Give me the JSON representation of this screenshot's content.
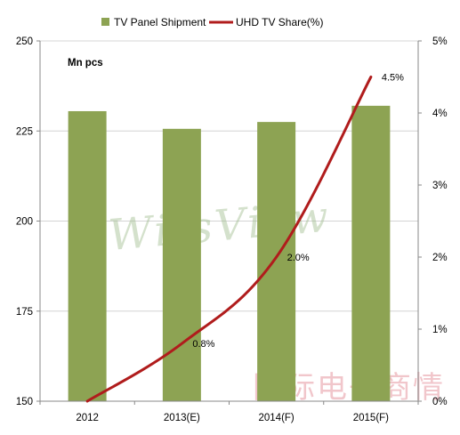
{
  "chart_data": {
    "type": "bar",
    "categories": [
      "2012",
      "2013(E)",
      "2014(F)",
      "2015(F)"
    ],
    "series": [
      {
        "name": "TV Panel Shipment",
        "type": "bar",
        "axis": "left",
        "color": "#8da353",
        "values": [
          230.5,
          225.6,
          227.5,
          232
        ]
      },
      {
        "name": "UHD TV Share(%)",
        "type": "line",
        "axis": "right",
        "color": "#b01c1c",
        "values": [
          0.0,
          0.8,
          2.0,
          4.5
        ],
        "data_labels": [
          "",
          "0.8%",
          "2.0%",
          "4.5%"
        ]
      }
    ],
    "unit_label": "Mn pcs",
    "ylim": [
      150,
      250
    ],
    "y_ticks": [
      "150",
      "175",
      "200",
      "225",
      "250"
    ],
    "y2lim": [
      0,
      5
    ],
    "y2_ticks": [
      "0%",
      "1%",
      "2%",
      "3%",
      "4%",
      "5%"
    ],
    "grid": true,
    "legend": "top-center"
  },
  "watermarks": {
    "brand": "WitsView",
    "cn": "国际电子商情"
  }
}
